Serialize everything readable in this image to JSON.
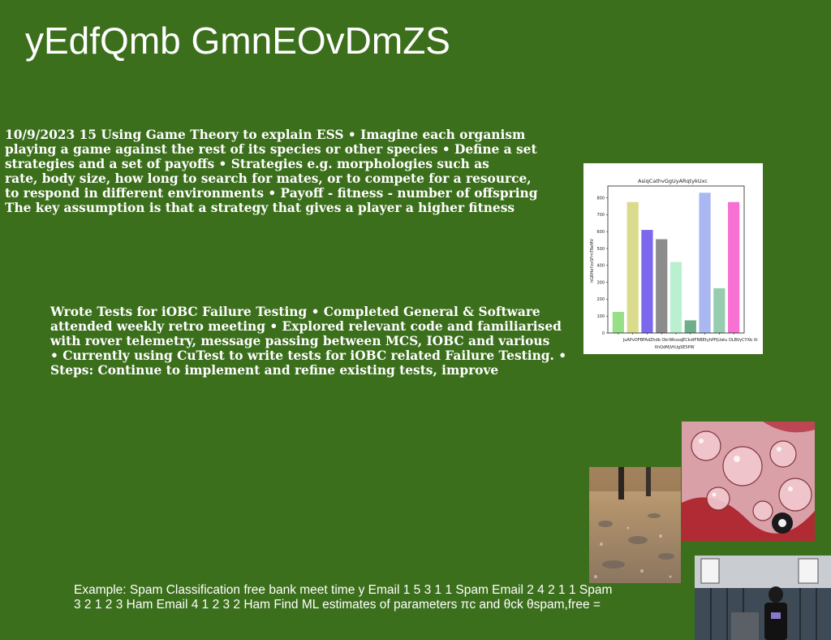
{
  "slide": {
    "title": "yEdfQmb GmnEOvDmZS",
    "background_color": "#3c6f1c",
    "text_color": "#ffffff"
  },
  "ess_block": {
    "lines": [
      "10/9/2023 15 Using Game Theory to explain ESS • Imagine each organism",
      "playing a game against the rest of its species or other species • Define a set",
      "strategies and a set of payoffs • Strategies e.g. morphologies such as",
      "rate, body size, how long to search for mates, or to compete for a resource,",
      "to respond in different environments • Payoff - fitness - number of offspring",
      "The key assumption is that a strategy that gives a player a higher fitness"
    ]
  },
  "iobc_block": {
    "lines": [
      "Wrote Tests for iOBC Failure Testing • Completed General & Software",
      "attended weekly retro meeting • Explored relevant code and familiarised",
      "with rover telemetry, message passing between MCS, IOBC and various",
      "• Currently using CuTest to write tests for iOBC related Failure Testing. •",
      "Steps: Continue to implement and refine existing tests, improve"
    ]
  },
  "spam_block": {
    "lines": [
      "Example: Spam Classification free bank meet time y Email 1 5 3 1 1 Spam Email 2 4 2 1 1 Spam",
      "3 2 1 2 3 Ham Email 4 1 2 3 2 Ham Find ML estimates of parameters πc and θck θspam,free ="
    ]
  },
  "chart_data": {
    "type": "bar",
    "title": "AsiqCathvGgUyARqtykUxc",
    "xlabel": "XhQdMjVtUgSESPW",
    "ylabel": "hGBHeYzxSFmTReMV",
    "categories": [
      "JuAPvOF",
      "BFAdZhdb",
      "OkrW",
      "ksoq",
      "ECkdtFNB",
      "KEtyhPP",
      "jUatu",
      "OLBVy",
      "CYXb Xr"
    ],
    "tick_labels": "JuAPvOFBFAdZhdb OkrWksoqECkdtFNBEtyhPPjUatu OLBVyCYXb Xr",
    "values": [
      125,
      775,
      610,
      555,
      420,
      75,
      830,
      265,
      775
    ],
    "colors": [
      "#98df8a",
      "#dbdb8d",
      "#7b68ee",
      "#8c8c8c",
      "#b8f0d0",
      "#6fae8a",
      "#a9b8f0",
      "#96cdb0",
      "#f771d3"
    ],
    "ylim": [
      0,
      870
    ],
    "yticks": [
      0,
      100,
      200,
      300,
      400,
      500,
      600,
      700,
      800
    ],
    "grid": false,
    "legend": "none"
  },
  "photos": {
    "ground": "photo of muddy ground with wooden posts",
    "bubbles": "photo of pink water droplets",
    "street": "photo of person in front of a house"
  }
}
